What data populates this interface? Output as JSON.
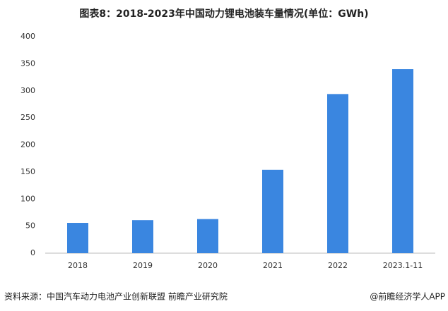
{
  "chart_data": {
    "type": "bar",
    "title": "图表8：2018-2023年中国动力锂电池装车量情况(单位：GWh)",
    "categories": [
      "2018",
      "2019",
      "2020",
      "2021",
      "2022",
      "2023.1-11"
    ],
    "values": [
      56,
      61,
      63,
      154,
      294,
      340
    ],
    "color": "#3a86e0",
    "ylim": [
      0,
      400
    ],
    "yticks": [
      0,
      50,
      100,
      150,
      200,
      250,
      300,
      350,
      400
    ],
    "grid": false,
    "source": "资料来源：中国汽车动力电池产业创新联盟 前瞻产业研究院",
    "credit": "@前瞻经济学人APP"
  }
}
